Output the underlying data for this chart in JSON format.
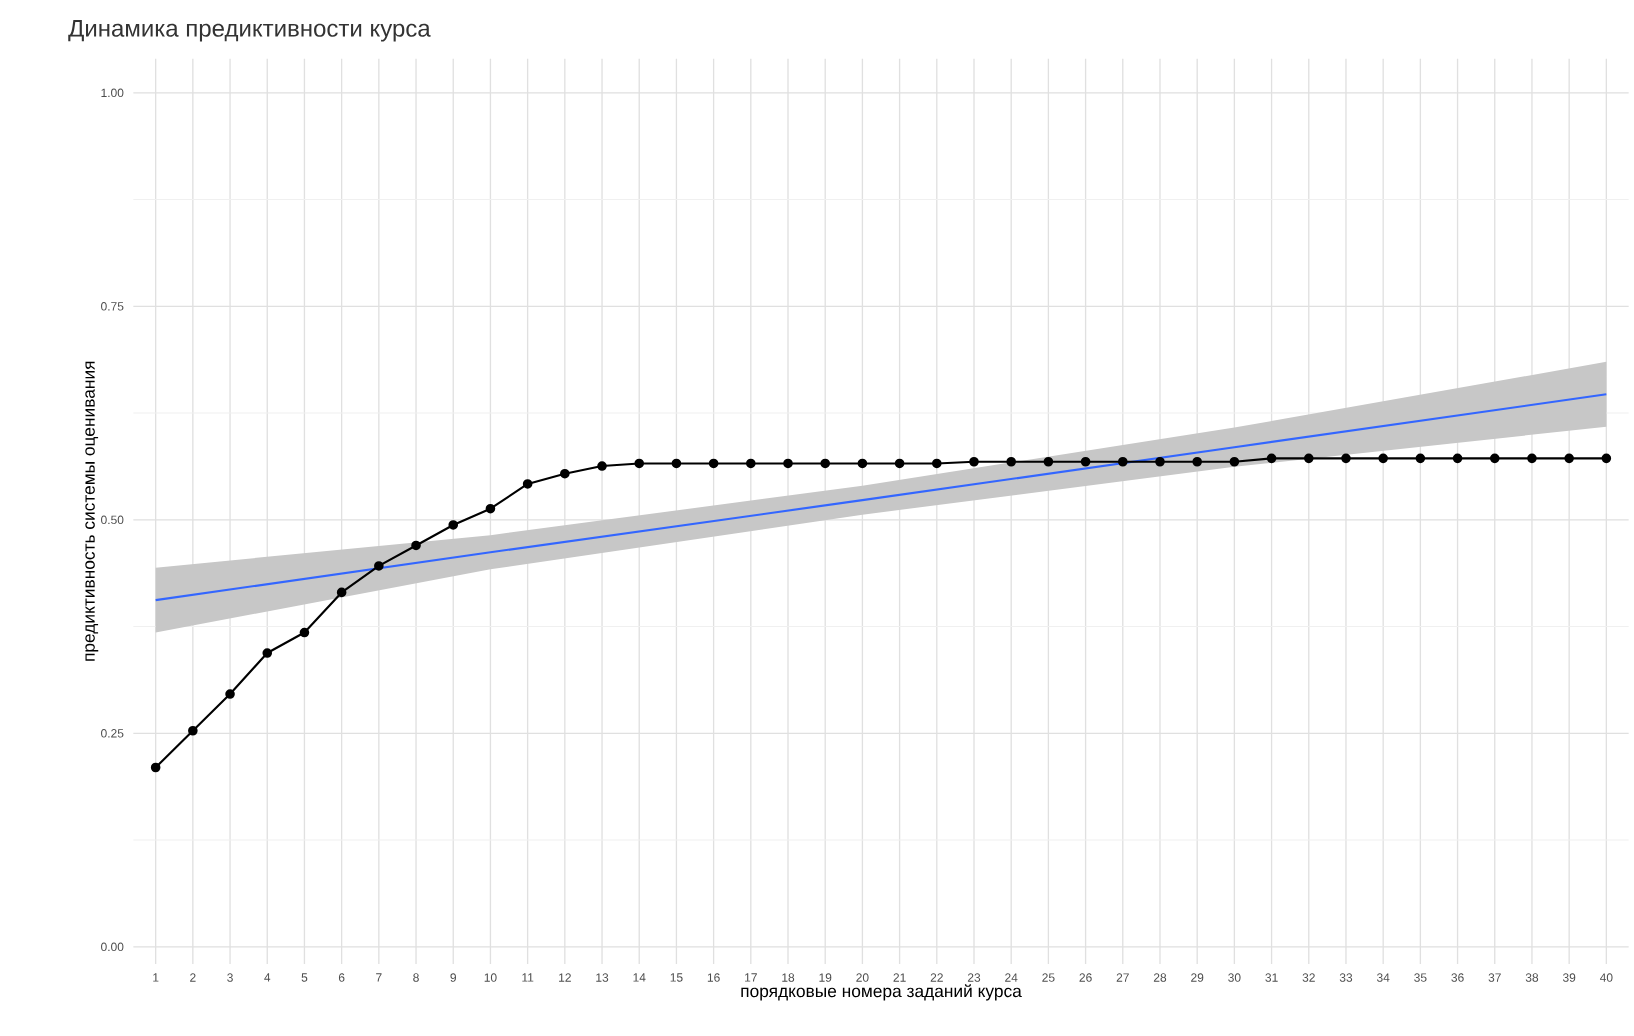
{
  "chart_data": {
    "type": "line",
    "title": "Динамика предиктивности курса",
    "xlabel": "порядковые номера заданий курса",
    "ylabel": "предиктивность системы оценивания",
    "xlim": [
      0.4,
      40.6
    ],
    "xticks": [
      1,
      2,
      3,
      4,
      5,
      6,
      7,
      8,
      9,
      10,
      11,
      12,
      13,
      14,
      15,
      16,
      17,
      18,
      19,
      20,
      21,
      22,
      23,
      24,
      25,
      26,
      27,
      28,
      29,
      30,
      31,
      32,
      33,
      34,
      35,
      36,
      37,
      38,
      39,
      40
    ],
    "ylim": [
      -0.02,
      1.04
    ],
    "yticks": [
      {
        "value": 0,
        "label": "0.00"
      },
      {
        "value": 0.25,
        "label": "0.25"
      },
      {
        "value": 0.5,
        "label": "0.50"
      },
      {
        "value": 0.75,
        "label": "0.75"
      },
      {
        "value": 1,
        "label": "1.00"
      }
    ],
    "grid": true,
    "series": [
      {
        "type": "line",
        "color": "#3366ff",
        "x": [
          1,
          10,
          20,
          30,
          40
        ],
        "values": [
          0.406,
          0.462,
          0.523,
          0.585,
          0.647
        ],
        "lower": [
          0.368,
          0.442,
          0.506,
          0.562,
          0.609
        ],
        "upper": [
          0.444,
          0.482,
          0.54,
          0.608,
          0.685
        ],
        "marker": "none"
      },
      {
        "type": "line",
        "color": "#000000",
        "marker": "circle",
        "x": [
          1,
          2,
          3,
          4,
          5,
          6,
          7,
          8,
          9,
          10,
          11,
          12,
          13,
          14,
          15,
          16,
          17,
          18,
          19,
          20,
          21,
          22,
          23,
          24,
          25,
          26,
          27,
          28,
          29,
          30,
          31,
          32,
          33,
          34,
          35,
          36,
          37,
          38,
          39,
          40
        ],
        "values": [
          0.21,
          0.253,
          0.296,
          0.344,
          0.368,
          0.415,
          0.446,
          0.47,
          0.494,
          0.513,
          0.542,
          0.554,
          0.563,
          0.566,
          0.566,
          0.566,
          0.566,
          0.566,
          0.566,
          0.566,
          0.566,
          0.566,
          0.568,
          0.568,
          0.568,
          0.568,
          0.568,
          0.568,
          0.568,
          0.568,
          0.572,
          0.572,
          0.572,
          0.572,
          0.572,
          0.572,
          0.572,
          0.572,
          0.572,
          0.572
        ]
      }
    ]
  }
}
